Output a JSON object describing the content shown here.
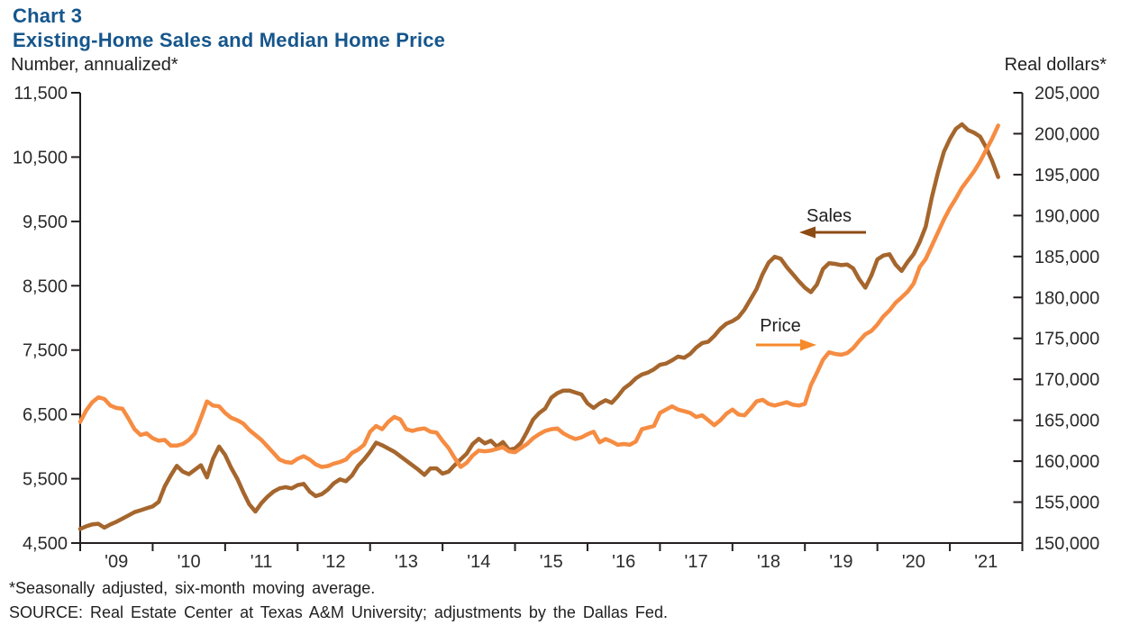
{
  "header": {
    "chart_label": "Chart 3",
    "title": "Existing-Home Sales and Median Home Price"
  },
  "axes": {
    "left_unit": "Number, annualized*",
    "right_unit": "Real dollars*",
    "left_ticks": [
      "11,500",
      "10,500",
      "9,500",
      "8,500",
      "7,500",
      "6,500",
      "5,500",
      "4,500"
    ],
    "right_ticks": [
      "205,000",
      "200,000",
      "195,000",
      "190,000",
      "185,000",
      "180,000",
      "175,000",
      "170,000",
      "165,000",
      "160,000",
      "155,000",
      "150,000"
    ],
    "year_labels": [
      "'09",
      "'10",
      "'11",
      "'12",
      "'13",
      "'14",
      "'15",
      "'16",
      "'17",
      "'18",
      "'19",
      "'20",
      "'21"
    ]
  },
  "annotations": {
    "sales_label": "Sales",
    "price_label": "Price"
  },
  "footnote": "*Seasonally adjusted, six-month moving average.",
  "source": "SOURCE: Real Estate Center at Texas A&M University; adjustments by the Dallas Fed.",
  "colors": {
    "title": "#16568c",
    "axis": "#231f20",
    "tick_text": "#2b2b2b",
    "sales_line": "#a5662d",
    "sales_arrow": "#8c4b13",
    "price_line": "#f68c42",
    "price_arrow": "#f6892a"
  },
  "chart_data": {
    "type": "line",
    "title": "Existing-Home Sales and Median Home Price",
    "frequency": "monthly",
    "x_start": "2009-01",
    "x_end": "2021-09",
    "x_axis": {
      "tick_years": [
        2009,
        2010,
        2011,
        2012,
        2013,
        2014,
        2015,
        2016,
        2017,
        2018,
        2019,
        2020,
        2021
      ],
      "grid": false,
      "legend": "inline-annotations"
    },
    "left_axis": {
      "label": "Number, annualized*",
      "min": 4500,
      "max": 11500,
      "tick_step": 1000
    },
    "right_axis": {
      "label": "Real dollars*",
      "min": 150000,
      "max": 205000,
      "tick_step": 5000
    },
    "series": [
      {
        "name": "Sales",
        "axis": "left",
        "color": "#a5662d",
        "values": [
          4720,
          4760,
          4790,
          4800,
          4740,
          4790,
          4830,
          4880,
          4930,
          4980,
          5010,
          5040,
          5070,
          5140,
          5380,
          5550,
          5700,
          5610,
          5570,
          5640,
          5710,
          5520,
          5810,
          6000,
          5870,
          5670,
          5500,
          5290,
          5100,
          4990,
          5120,
          5220,
          5300,
          5350,
          5370,
          5350,
          5400,
          5420,
          5300,
          5230,
          5260,
          5330,
          5430,
          5490,
          5460,
          5550,
          5700,
          5800,
          5920,
          6060,
          6020,
          5970,
          5920,
          5850,
          5780,
          5710,
          5640,
          5560,
          5660,
          5660,
          5580,
          5610,
          5710,
          5800,
          5890,
          6040,
          6120,
          6050,
          6090,
          6000,
          6070,
          5950,
          5970,
          6060,
          6230,
          6420,
          6520,
          6590,
          6760,
          6830,
          6870,
          6870,
          6840,
          6810,
          6670,
          6600,
          6670,
          6720,
          6680,
          6780,
          6900,
          6970,
          7060,
          7120,
          7150,
          7200,
          7270,
          7290,
          7340,
          7400,
          7380,
          7440,
          7540,
          7610,
          7630,
          7720,
          7830,
          7910,
          7950,
          8010,
          8130,
          8290,
          8450,
          8680,
          8860,
          8950,
          8920,
          8790,
          8680,
          8570,
          8470,
          8400,
          8520,
          8760,
          8850,
          8840,
          8820,
          8830,
          8770,
          8600,
          8470,
          8660,
          8910,
          8970,
          8990,
          8830,
          8730,
          8870,
          8990,
          9180,
          9420,
          9870,
          10250,
          10580,
          10780,
          10940,
          11010,
          10920,
          10880,
          10820,
          10650,
          10440,
          10190
        ]
      },
      {
        "name": "Price",
        "axis": "right",
        "color": "#f68c42",
        "values": [
          164800,
          166200,
          167200,
          167800,
          167600,
          166800,
          166500,
          166400,
          165200,
          163900,
          163200,
          163400,
          162800,
          162500,
          162600,
          161900,
          161900,
          162100,
          162600,
          163400,
          165300,
          167300,
          166800,
          166700,
          165900,
          165300,
          165000,
          164600,
          163800,
          163200,
          162600,
          161800,
          161000,
          160200,
          159900,
          159800,
          160300,
          160600,
          160200,
          159600,
          159300,
          159400,
          159700,
          159900,
          160200,
          161000,
          161400,
          162000,
          163600,
          164300,
          163900,
          164800,
          165400,
          165100,
          163900,
          163700,
          163900,
          164000,
          163600,
          163500,
          162500,
          161600,
          160400,
          159300,
          159800,
          160700,
          161300,
          161200,
          161300,
          161500,
          161700,
          161200,
          161100,
          161600,
          162100,
          162800,
          163300,
          163700,
          163900,
          164000,
          163400,
          163000,
          162700,
          162900,
          163300,
          163600,
          162300,
          162700,
          162400,
          162000,
          162100,
          162000,
          162400,
          163900,
          164100,
          164300,
          165900,
          166300,
          166700,
          166300,
          166100,
          165900,
          165400,
          165600,
          165000,
          164400,
          165000,
          165800,
          166300,
          165700,
          165600,
          166400,
          167300,
          167500,
          167000,
          166800,
          167000,
          167200,
          166900,
          166800,
          167000,
          169300,
          170800,
          172400,
          173300,
          173100,
          173000,
          173200,
          173800,
          174700,
          175500,
          175900,
          176700,
          177700,
          178400,
          179350,
          180000,
          180700,
          181700,
          183700,
          184700,
          186300,
          187900,
          189500,
          190900,
          192100,
          193400,
          194400,
          195400,
          196600,
          198000,
          199400,
          201000
        ]
      }
    ]
  }
}
